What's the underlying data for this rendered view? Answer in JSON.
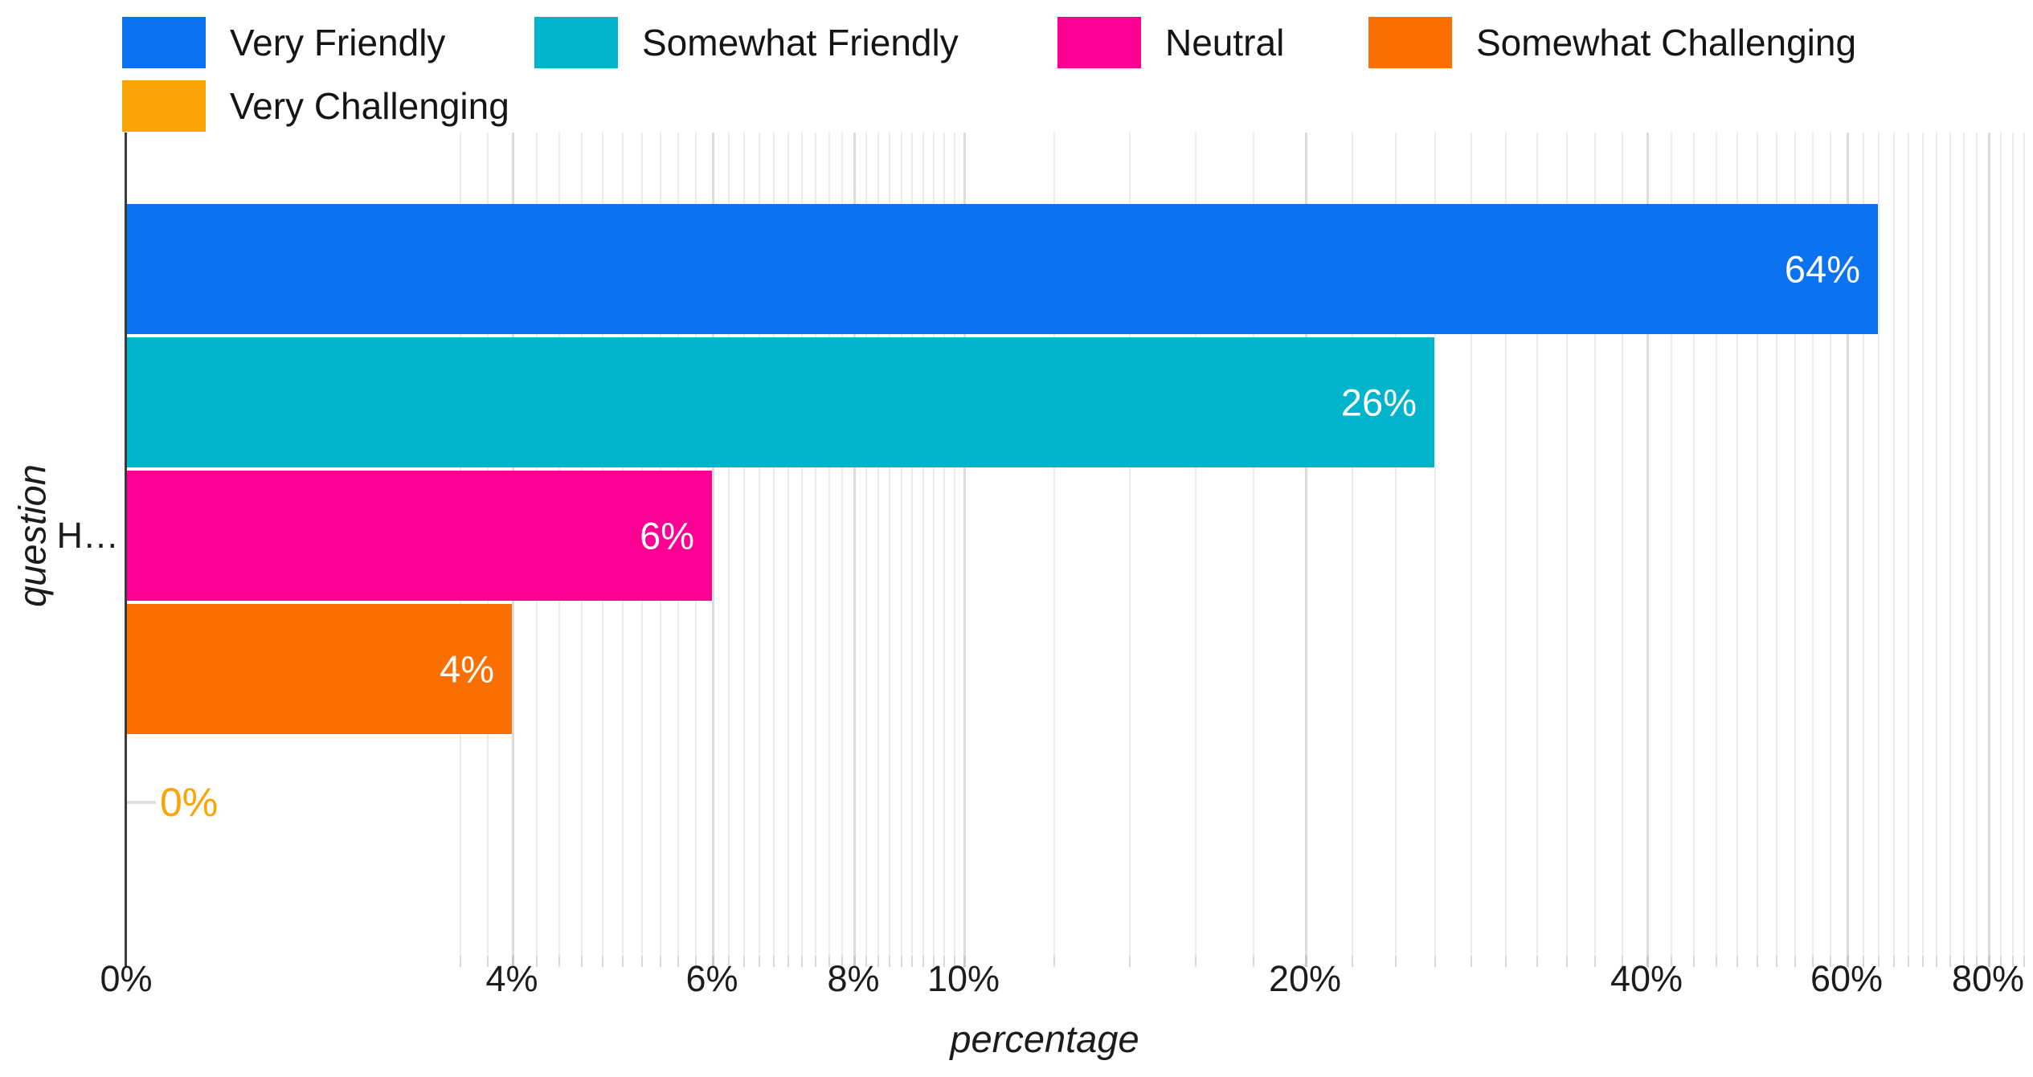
{
  "chart_data": {
    "type": "bar",
    "orientation": "horizontal",
    "x_scale": "log",
    "grid": true,
    "legend_position": "top-left",
    "xlabel": "percentage",
    "ylabel": "question",
    "categories": [
      "H…"
    ],
    "series": [
      {
        "name": "Very Friendly",
        "color": "#0B73F0",
        "value": 64,
        "label": "64%"
      },
      {
        "name": "Somewhat Friendly",
        "color": "#00B5CB",
        "value": 26,
        "label": "26%"
      },
      {
        "name": "Neutral",
        "color": "#FC0093",
        "value": 6,
        "label": "6%"
      },
      {
        "name": "Somewhat Challenging",
        "color": "#FB6E00",
        "value": 4,
        "label": "4%"
      },
      {
        "name": "Very Challenging",
        "color": "#FCA405",
        "value": 0,
        "label": "0%"
      }
    ],
    "x_ticks": [
      {
        "value": 0,
        "label": "0%"
      },
      {
        "value": 4,
        "label": "4%"
      },
      {
        "value": 6,
        "label": "6%"
      },
      {
        "value": 8,
        "label": "8%"
      },
      {
        "value": 10,
        "label": "10%"
      },
      {
        "value": 20,
        "label": "20%"
      },
      {
        "value": 40,
        "label": "40%"
      },
      {
        "value": 60,
        "label": "60%"
      },
      {
        "value": 80,
        "label": "80%"
      }
    ]
  },
  "axes": {
    "x_title": "percentage",
    "y_title": "question",
    "y_category": "H…"
  }
}
